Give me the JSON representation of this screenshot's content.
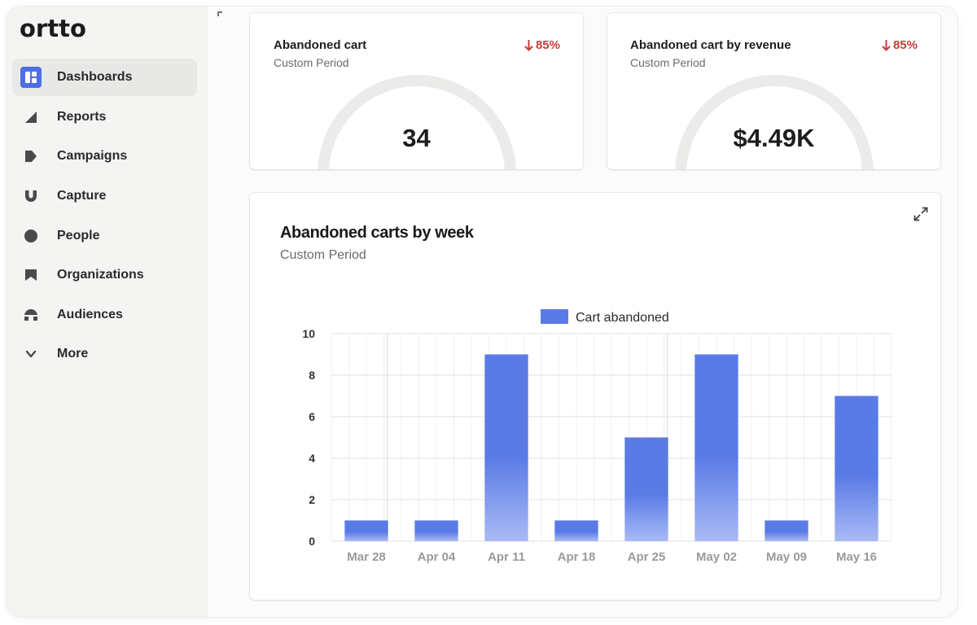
{
  "app": {
    "logo_text": "ortto"
  },
  "sidebar": {
    "items": [
      {
        "label": "Dashboards",
        "icon": "dashboard-icon",
        "active": true
      },
      {
        "label": "Reports",
        "icon": "reports-icon",
        "active": false
      },
      {
        "label": "Campaigns",
        "icon": "campaigns-icon",
        "active": false
      },
      {
        "label": "Capture",
        "icon": "capture-icon",
        "active": false
      },
      {
        "label": "People",
        "icon": "people-icon",
        "active": false
      },
      {
        "label": "Organizations",
        "icon": "organizations-icon",
        "active": false
      },
      {
        "label": "Audiences",
        "icon": "audiences-icon",
        "active": false
      },
      {
        "label": "More",
        "icon": "chevron-down-icon",
        "active": false
      }
    ]
  },
  "cards": [
    {
      "title": "Abandoned cart",
      "subtitle": "Custom Period",
      "trend": "85%",
      "trend_direction": "down",
      "value": "34"
    },
    {
      "title": "Abandoned cart by revenue",
      "subtitle": "Custom Period",
      "trend": "85%",
      "trend_direction": "down",
      "value": "$4.49K"
    }
  ],
  "colors": {
    "accent": "#4c6fe3",
    "bar_top": "#5a7be6",
    "bar_bottom": "#a9baf4",
    "trend_down": "#c63d3d",
    "gauge_track": "#ebebea"
  },
  "chart_panel": {
    "title": "Abandoned carts by week",
    "subtitle": "Custom Period"
  },
  "chart_data": {
    "type": "bar",
    "categories": [
      "Mar 28",
      "Apr 04",
      "Apr 11",
      "Apr 18",
      "Apr 25",
      "May 02",
      "May 09",
      "May 16"
    ],
    "series": [
      {
        "name": "Cart abandoned",
        "values": [
          1,
          1,
          9,
          1,
          5,
          9,
          1,
          7
        ]
      }
    ],
    "ylim": [
      0,
      10
    ],
    "yticks": [
      0,
      2,
      4,
      6,
      8,
      10
    ],
    "grid": true,
    "legend_position": "top-center"
  }
}
